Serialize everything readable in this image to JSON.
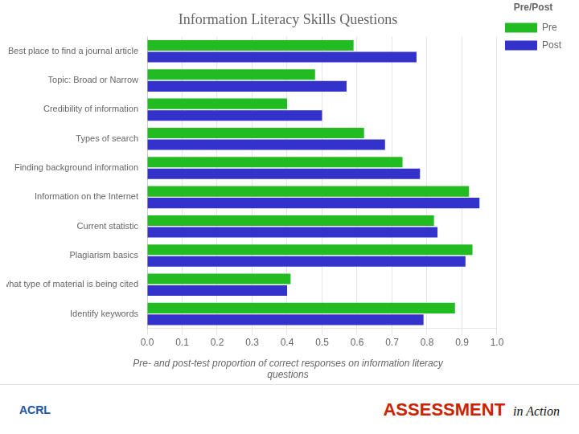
{
  "chart_data": {
    "type": "bar",
    "orientation": "horizontal",
    "title": "Information Literacy Skills Questions",
    "subtitle": "Pre- and post-test proportion of correct responses on information literacy\nquestions",
    "legend_title": "Pre/Post",
    "annotations": [
      "ACRL",
      "ASSESSMENT",
      "in Action"
    ],
    "categories": [
      "Best place to find a journal article",
      "Topic: Broad or Narrow",
      "Credibility of information",
      "Types of search",
      "Finding background information",
      "Information on the Internet",
      "Current statistic",
      "Plagiarism basics",
      "Identify what type of material is being cited",
      "Identify keywords"
    ],
    "series": [
      {
        "name": "Pre",
        "color": "#22BB22",
        "values": [
          0.59,
          0.48,
          0.4,
          0.62,
          0.73,
          0.92,
          0.82,
          0.93,
          0.41,
          0.88
        ]
      },
      {
        "name": "Post",
        "color": "#3333CC",
        "values": [
          0.77,
          0.57,
          0.5,
          0.68,
          0.78,
          0.95,
          0.83,
          0.91,
          0.4,
          0.79
        ]
      }
    ],
    "xlim": [
      0.0,
      1.0
    ],
    "xticks": [
      {
        "value": 0,
        "label": "0.0"
      },
      0.1,
      0.2,
      0.3,
      0.4,
      0.5,
      0.6,
      0.7,
      0.8,
      0.9,
      {
        "value": 1,
        "label": "1.0"
      }
    ],
    "grid": true,
    "legend": "upper right"
  }
}
